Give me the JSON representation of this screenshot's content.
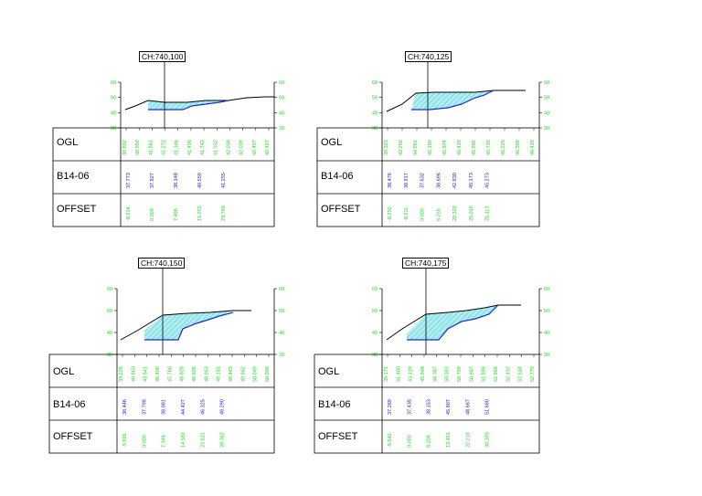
{
  "colors": {
    "ogl_values": "#22dd22",
    "b14_values": "#1a2bd6",
    "offset_values": "#22dd22",
    "axis_ticks": "#22dd22",
    "hatch_fill": "#aef0f2",
    "hatch_line": "#4aa8c6",
    "design_line": "#1a2bd6",
    "ground_line": "#000000"
  },
  "row_labels": {
    "ogl": "OGL",
    "b14": "B14-06",
    "offset": "OFFSET"
  },
  "sections": [
    {
      "chainage": "CH:740,100",
      "y_ticks": [
        "60",
        "50",
        "40",
        "30"
      ],
      "ogl": [
        "38.892",
        "40.559",
        "41.561",
        "41.272",
        "41.346",
        "41.496",
        "41.742",
        "41.552",
        "42.038",
        "42.039",
        "42.407",
        "42.407"
      ],
      "b14": [
        "37.773",
        "37.827",
        "38.140",
        "40.550",
        "41.255"
      ],
      "offset": [
        "-8.214",
        "0.000",
        "7.406",
        "15.255",
        "23.765"
      ]
    },
    {
      "chainage": "CH:740,125",
      "y_ticks": [
        "60",
        "50",
        "40",
        "30"
      ],
      "ogl": [
        "39.323",
        "42.256",
        "44.561",
        "45.189",
        "45.374",
        "45.418",
        "45.905",
        "45.718",
        "46.225",
        "46.389",
        "46.418"
      ],
      "b14": [
        "38.476",
        "38.917",
        "37.632",
        "38.696",
        "42.830",
        "45.173",
        "45.273"
      ],
      "offset": [
        "-8.250",
        "-8.211",
        "0.000",
        "6.256",
        "20.329",
        "25.015",
        "25.113"
      ]
    },
    {
      "chainage": "CH:740,150",
      "y_ticks": [
        "60",
        "50",
        "40",
        "30"
      ],
      "ogl": [
        "39.228",
        "40.863",
        "43.541",
        "45.406",
        "47.766",
        "48.828",
        "48.828",
        "48.863",
        "49.151",
        "49.443",
        "49.862",
        "50.049",
        "50.008"
      ],
      "b14": [
        "38.446",
        "37.798",
        "38.081",
        "44.427",
        "46.325",
        "48.290"
      ],
      "offset": [
        "-9.696",
        "0.000",
        "7.346",
        "14.581",
        "23.621",
        "28.362"
      ]
    },
    {
      "chainage": "CH:740,175",
      "y_ticks": [
        "60",
        "50",
        "40",
        "30"
      ],
      "ogl": [
        "39.171",
        "41.403",
        "43.129",
        "45.948",
        "48.387",
        "50.387",
        "50.799",
        "50.887",
        "51.895",
        "51.966",
        "52.452",
        "52.534",
        "52.779"
      ],
      "b14": [
        "37.269",
        "37.435",
        "38.153",
        "45.807",
        "48.667",
        "51.680"
      ],
      "offset": [
        "-9.640",
        "0.000",
        "8.208",
        "13.481",
        "22.218",
        "30.393"
      ]
    }
  ]
}
